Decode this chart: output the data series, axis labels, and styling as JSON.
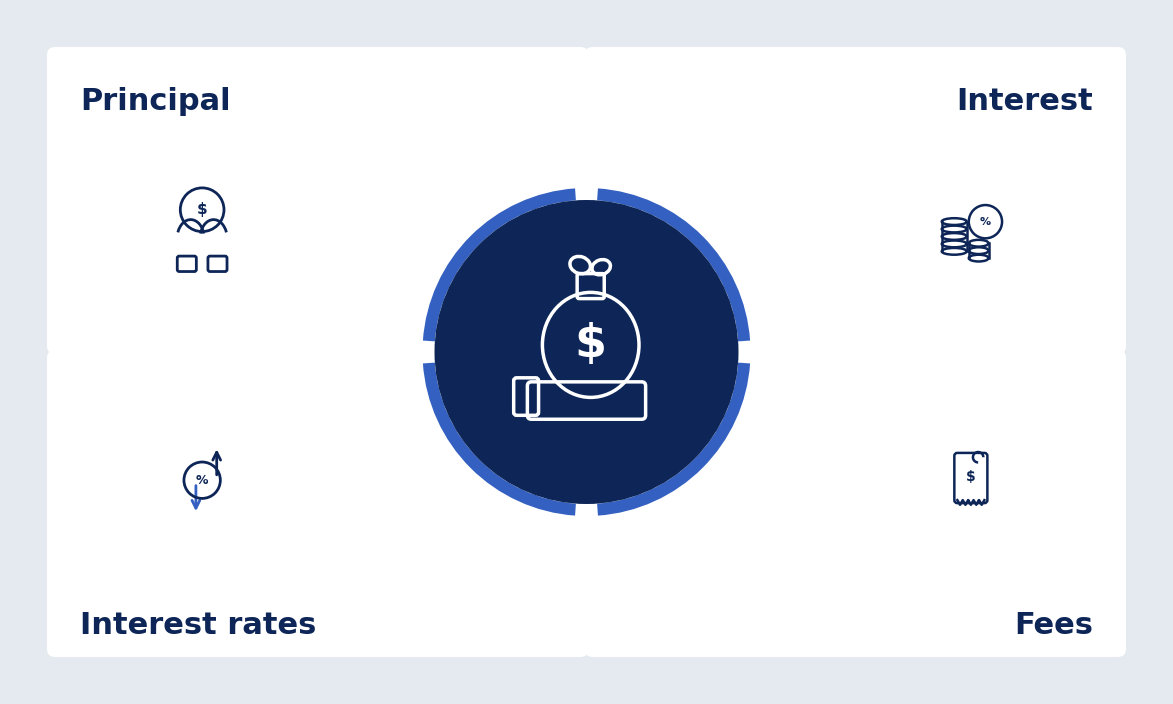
{
  "bg_color": "#e4eaf0",
  "card_color": "#ffffff",
  "dark_navy": "#0d2657",
  "medium_blue": "#2450a4",
  "bright_blue": "#3461c1",
  "title_fontsize": 22,
  "labels": [
    "Principal",
    "Interest",
    "Interest rates",
    "Fees"
  ],
  "label_ha": [
    "left",
    "right",
    "left",
    "right"
  ],
  "circle_fill_color": "#0d2657",
  "circle_border_color": "#3461c1",
  "fig_width": 11.73,
  "fig_height": 7.04
}
